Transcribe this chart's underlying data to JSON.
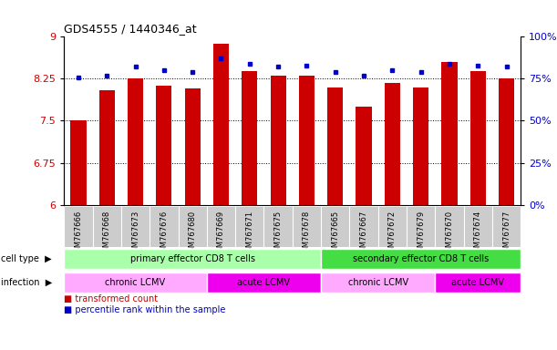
{
  "title": "GDS4555 / 1440346_at",
  "samples": [
    "GSM767666",
    "GSM767668",
    "GSM767673",
    "GSM767676",
    "GSM767680",
    "GSM767669",
    "GSM767671",
    "GSM767675",
    "GSM767678",
    "GSM767665",
    "GSM767667",
    "GSM767672",
    "GSM767679",
    "GSM767670",
    "GSM767674",
    "GSM767677"
  ],
  "transformed_count": [
    7.5,
    8.05,
    8.25,
    8.12,
    8.08,
    8.88,
    8.38,
    8.3,
    8.3,
    8.1,
    7.75,
    8.17,
    8.1,
    8.55,
    8.38,
    8.25
  ],
  "percentile_rank": [
    76,
    77,
    82,
    80,
    79,
    87,
    84,
    82,
    83,
    79,
    77,
    80,
    79,
    84,
    83,
    82
  ],
  "ylim_left": [
    6,
    9
  ],
  "ylim_right": [
    0,
    100
  ],
  "yticks_left": [
    6,
    6.75,
    7.5,
    8.25,
    9
  ],
  "yticks_right": [
    0,
    25,
    50,
    75,
    100
  ],
  "ytick_labels_left": [
    "6",
    "6.75",
    "7.5",
    "8.25",
    "9"
  ],
  "ytick_labels_right": [
    "0%",
    "25%",
    "50%",
    "75%",
    "100%"
  ],
  "bar_color": "#cc0000",
  "dot_color": "#0000cc",
  "cell_type_groups": [
    {
      "label": "primary effector CD8 T cells",
      "start": 0,
      "end": 9,
      "color": "#aaffaa"
    },
    {
      "label": "secondary effector CD8 T cells",
      "start": 9,
      "end": 16,
      "color": "#44dd44"
    }
  ],
  "infection_groups": [
    {
      "label": "chronic LCMV",
      "start": 0,
      "end": 5,
      "color": "#ffaaff"
    },
    {
      "label": "acute LCMV",
      "start": 5,
      "end": 9,
      "color": "#ee00ee"
    },
    {
      "label": "chronic LCMV",
      "start": 9,
      "end": 13,
      "color": "#ffaaff"
    },
    {
      "label": "acute LCMV",
      "start": 13,
      "end": 16,
      "color": "#ee00ee"
    }
  ],
  "legend_items": [
    {
      "label": "transformed count",
      "color": "#cc0000"
    },
    {
      "label": "percentile rank within the sample",
      "color": "#0000cc"
    }
  ],
  "row_labels": [
    "cell type",
    "infection"
  ],
  "tick_label_color_left": "#cc0000",
  "tick_label_color_right": "#0000cc",
  "xtick_bg_color": "#cccccc",
  "fig_bg_color": "#ffffff"
}
